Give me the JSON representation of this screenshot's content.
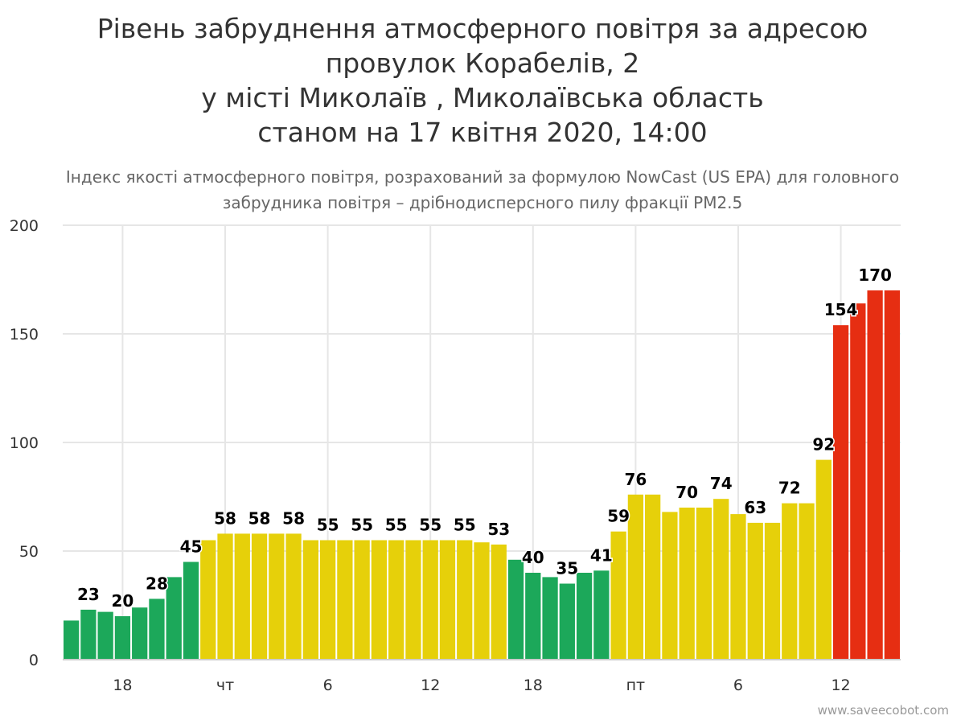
{
  "title_lines": [
    "Рівень забруднення атмосферного повітря за адресою",
    "провулок Корабелів, 2",
    "у місті Миколаїв , Миколаївська область",
    "станом на 17 квітня 2020, 14:00"
  ],
  "subtitle": "Індекс якості атмосферного повітря, розрахований за формулою NowCast (US EPA) для головного забрудника повітря – дрібнодисперсного пилу фракції PM2.5",
  "credits": "www.saveecobot.com",
  "colors": {
    "good": "#1ca85a",
    "moderate": "#e6d00a",
    "unhealthy": "#e62e12",
    "grid": "#e6e6e6"
  },
  "chart_data": {
    "type": "bar",
    "yticks": [
      0,
      50,
      100,
      150,
      200
    ],
    "ylim": [
      0,
      200
    ],
    "xticks": [
      {
        "index": 3,
        "label": "18"
      },
      {
        "index": 9,
        "label": "чт"
      },
      {
        "index": 15,
        "label": "6"
      },
      {
        "index": 21,
        "label": "12"
      },
      {
        "index": 27,
        "label": "18"
      },
      {
        "index": 33,
        "label": "пт"
      },
      {
        "index": 39,
        "label": "6"
      },
      {
        "index": 45,
        "label": "12"
      }
    ],
    "values": [
      18,
      23,
      22,
      20,
      24,
      28,
      38,
      45,
      55,
      58,
      58,
      58,
      58,
      58,
      55,
      55,
      55,
      55,
      55,
      55,
      55,
      55,
      55,
      55,
      54,
      53,
      46,
      40,
      38,
      35,
      40,
      41,
      59,
      76,
      76,
      68,
      70,
      70,
      74,
      67,
      63,
      63,
      72,
      72,
      92,
      154,
      164,
      170,
      170
    ],
    "data_labels": {
      "1": "23",
      "3": "20",
      "5": "28",
      "7": "45",
      "9": "58",
      "11": "58",
      "13": "58",
      "15": "55",
      "17": "55",
      "19": "55",
      "21": "55",
      "23": "55",
      "25": "53",
      "27": "40",
      "29": "35",
      "31": "41",
      "32": "59",
      "33": "76",
      "36": "70",
      "38": "74",
      "40": "63",
      "42": "72",
      "44": "92",
      "45": "154",
      "47": "170"
    },
    "legend": "none",
    "grid": true
  }
}
